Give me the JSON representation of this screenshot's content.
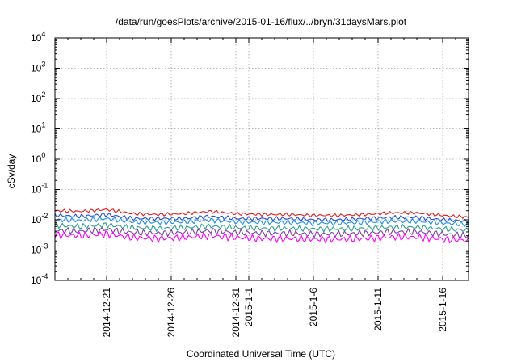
{
  "chart_data": {
    "type": "line",
    "title": "/data/run/goesPlots/archive/2015-01-16/flux/../bryn/31daysMars.plot",
    "xlabel": "Coordinated Universal Time (UTC)",
    "ylabel": "cSv/day",
    "yscale": "log",
    "xrange": [
      "2014-12-17",
      "2015-01-18"
    ],
    "ylim": [
      0.0001,
      10000
    ],
    "grid": true,
    "legend": "none",
    "yticks": [
      {
        "base": "10",
        "exp": "-4",
        "value": 0.0001
      },
      {
        "base": "10",
        "exp": "-3",
        "value": 0.001
      },
      {
        "base": "10",
        "exp": "-2",
        "value": 0.01
      },
      {
        "base": "10",
        "exp": "-1",
        "value": 0.1
      },
      {
        "base": "10",
        "exp": "0",
        "value": 1
      },
      {
        "base": "10",
        "exp": "1",
        "value": 10
      },
      {
        "base": "10",
        "exp": "2",
        "value": 100
      },
      {
        "base": "10",
        "exp": "3",
        "value": 1000
      },
      {
        "base": "10",
        "exp": "4",
        "value": 10000
      }
    ],
    "xticks": [
      {
        "label": "2014-12-21",
        "date": "2014-12-21"
      },
      {
        "label": "2014-12-26",
        "date": "2014-12-26"
      },
      {
        "label": "2014-12-31",
        "date": "2014-12-31"
      },
      {
        "label": "2015-1-1",
        "date": "2015-01-01"
      },
      {
        "label": "2015-1-6",
        "date": "2015-01-06"
      },
      {
        "label": "2015-1-11",
        "date": "2015-01-11"
      },
      {
        "label": "2015-1-16",
        "date": "2015-01-16"
      }
    ],
    "series": [
      {
        "color": "#e41a1c",
        "x": [
          "2014-12-17",
          "2014-12-19",
          "2014-12-21",
          "2014-12-23",
          "2014-12-25",
          "2014-12-27",
          "2014-12-29",
          "2014-12-31",
          "2015-01-02",
          "2015-01-04",
          "2015-01-06",
          "2015-01-08",
          "2015-01-10",
          "2015-01-12",
          "2015-01-14",
          "2015-01-16",
          "2015-01-18"
        ],
        "values": [
          0.02,
          0.019,
          0.022,
          0.016,
          0.015,
          0.016,
          0.019,
          0.016,
          0.015,
          0.015,
          0.014,
          0.014,
          0.015,
          0.017,
          0.017,
          0.014,
          0.012
        ]
      },
      {
        "color": "#1f4fd8",
        "x": [
          "2014-12-17",
          "2014-12-19",
          "2014-12-21",
          "2014-12-23",
          "2014-12-25",
          "2014-12-27",
          "2014-12-29",
          "2014-12-31",
          "2015-01-02",
          "2015-01-04",
          "2015-01-06",
          "2015-01-08",
          "2015-01-10",
          "2015-01-12",
          "2015-01-14",
          "2015-01-16",
          "2015-01-18"
        ],
        "values": [
          0.014,
          0.013,
          0.015,
          0.011,
          0.011,
          0.011,
          0.013,
          0.011,
          0.011,
          0.011,
          0.01,
          0.01,
          0.011,
          0.012,
          0.012,
          0.01,
          0.009
        ]
      },
      {
        "color": "#1e8fe8",
        "x": [
          "2014-12-17",
          "2014-12-19",
          "2014-12-21",
          "2014-12-23",
          "2014-12-25",
          "2014-12-27",
          "2014-12-29",
          "2014-12-31",
          "2015-01-02",
          "2015-01-04",
          "2015-01-06",
          "2015-01-08",
          "2015-01-10",
          "2015-01-12",
          "2015-01-14",
          "2015-01-16",
          "2015-01-18"
        ],
        "values": [
          0.01,
          0.0095,
          0.011,
          0.0085,
          0.0082,
          0.0085,
          0.0098,
          0.0085,
          0.0082,
          0.0082,
          0.0078,
          0.0078,
          0.0082,
          0.009,
          0.009,
          0.0078,
          0.007
        ]
      },
      {
        "color": "#2ca089",
        "x": [
          "2014-12-17",
          "2014-12-19",
          "2014-12-21",
          "2014-12-23",
          "2014-12-25",
          "2014-12-27",
          "2014-12-29",
          "2014-12-31",
          "2015-01-02",
          "2015-01-04",
          "2015-01-06",
          "2015-01-08",
          "2015-01-10",
          "2015-01-12",
          "2015-01-14",
          "2015-01-16",
          "2015-01-18"
        ],
        "values": [
          0.0065,
          0.006,
          0.0068,
          0.0055,
          0.0052,
          0.0055,
          0.0062,
          0.0055,
          0.0052,
          0.0052,
          0.005,
          0.005,
          0.0052,
          0.0057,
          0.0057,
          0.005,
          0.0045
        ]
      },
      {
        "color": "#7b3fa0",
        "x": [
          "2014-12-17",
          "2014-12-19",
          "2014-12-21",
          "2014-12-23",
          "2014-12-25",
          "2014-12-27",
          "2014-12-29",
          "2014-12-31",
          "2015-01-02",
          "2015-01-04",
          "2015-01-06",
          "2015-01-08",
          "2015-01-10",
          "2015-01-12",
          "2015-01-14",
          "2015-01-16",
          "2015-01-18"
        ],
        "values": [
          0.0045,
          0.0042,
          0.0048,
          0.0038,
          0.0036,
          0.0038,
          0.0044,
          0.0038,
          0.0036,
          0.0036,
          0.0034,
          0.0034,
          0.0036,
          0.004,
          0.004,
          0.0034,
          0.003
        ]
      },
      {
        "color": "#ff00ff",
        "x": [
          "2014-12-17",
          "2014-12-19",
          "2014-12-21",
          "2014-12-23",
          "2014-12-25",
          "2014-12-27",
          "2014-12-29",
          "2014-12-31",
          "2015-01-02",
          "2015-01-04",
          "2015-01-06",
          "2015-01-08",
          "2015-01-10",
          "2015-01-12",
          "2015-01-14",
          "2015-01-16",
          "2015-01-18"
        ],
        "values": [
          0.0032,
          0.003,
          0.0034,
          0.0026,
          0.0024,
          0.0026,
          0.003,
          0.0026,
          0.0024,
          0.0024,
          0.0023,
          0.0023,
          0.0024,
          0.0027,
          0.0027,
          0.0023,
          0.0021
        ]
      }
    ]
  }
}
